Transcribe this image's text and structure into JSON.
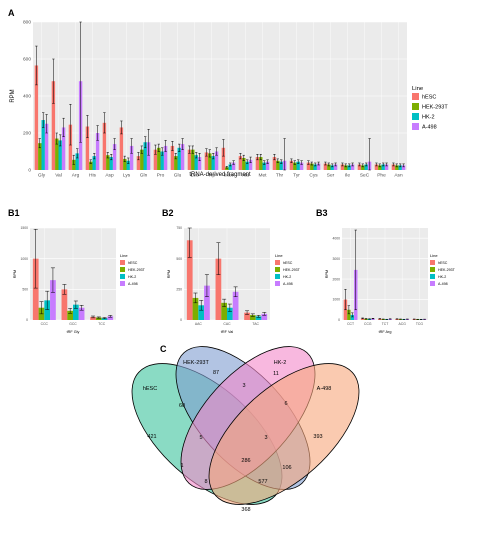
{
  "panel_labels": {
    "A": "A",
    "B1": "B1",
    "B2": "B2",
    "B3": "B3",
    "C": "C"
  },
  "legend": {
    "title": "Line",
    "entries": [
      "hESC",
      "HEK-293T",
      "HK-2",
      "A-498"
    ],
    "colors": [
      "#F8766D",
      "#7CAE00",
      "#00BFC4",
      "#C77CFF"
    ]
  },
  "chart_data": [
    {
      "id": "A",
      "type": "bar",
      "xlabel": "tRNA-derived fragment",
      "ylabel": "RPM",
      "ylim": [
        0,
        800
      ],
      "yticks": [
        0,
        200,
        400,
        600,
        800
      ],
      "grid": true,
      "legend_position": "right",
      "categories": [
        "Gly",
        "Val",
        "Arg",
        "His",
        "Asp",
        "Lys",
        "Gln",
        "Pro",
        "Glu",
        "Leu",
        "Trp",
        "iMet",
        "Ala",
        "Met",
        "Thr",
        "Tyr",
        "Cys",
        "Ser",
        "Ile",
        "SeC",
        "Phe",
        "Asn"
      ],
      "series": [
        {
          "name": "hESC",
          "values": [
            565,
            480,
            245,
            235,
            255,
            230,
            75,
            110,
            130,
            110,
            95,
            120,
            75,
            70,
            70,
            50,
            40,
            35,
            30,
            30,
            30,
            30
          ],
          "err": [
            105,
            120,
            110,
            60,
            55,
            35,
            20,
            25,
            25,
            20,
            20,
            45,
            15,
            15,
            15,
            10,
            10,
            8,
            8,
            8,
            8,
            8
          ]
        },
        {
          "name": "HEK-293T",
          "values": [
            145,
            170,
            55,
            45,
            80,
            60,
            110,
            120,
            75,
            110,
            90,
            15,
            65,
            70,
            50,
            40,
            35,
            30,
            25,
            25,
            25,
            25
          ],
          "err": [
            25,
            30,
            25,
            10,
            15,
            15,
            20,
            20,
            15,
            20,
            20,
            5,
            15,
            15,
            10,
            10,
            8,
            8,
            8,
            8,
            8,
            8
          ]
        },
        {
          "name": "HK-2",
          "values": [
            270,
            160,
            90,
            75,
            70,
            50,
            150,
            100,
            120,
            80,
            75,
            30,
            45,
            40,
            45,
            45,
            30,
            25,
            25,
            30,
            30,
            25
          ],
          "err": [
            40,
            30,
            25,
            15,
            15,
            15,
            30,
            20,
            20,
            15,
            15,
            8,
            10,
            10,
            10,
            10,
            8,
            8,
            8,
            8,
            8,
            8
          ]
        },
        {
          "name": "A-498",
          "values": [
            250,
            230,
            480,
            200,
            140,
            130,
            150,
            130,
            140,
            70,
            100,
            40,
            55,
            45,
            50,
            40,
            35,
            30,
            30,
            45,
            30,
            25
          ],
          "err": [
            50,
            50,
            330,
            40,
            30,
            40,
            70,
            30,
            30,
            20,
            20,
            10,
            15,
            10,
            120,
            10,
            8,
            8,
            8,
            125,
            8,
            8
          ]
        }
      ]
    },
    {
      "id": "B1",
      "type": "bar",
      "xlabel": "tRF Gly",
      "ylabel": "RPM",
      "ylim": [
        0,
        1500
      ],
      "yticks": [
        0,
        500,
        1000,
        1500
      ],
      "grid": true,
      "legend_position": "right",
      "categories": [
        "CCC",
        "GCC",
        "TCC"
      ],
      "series": [
        {
          "name": "hESC",
          "values": [
            1000,
            500,
            50
          ],
          "err": [
            480,
            80,
            15
          ]
        },
        {
          "name": "HEK-293T",
          "values": [
            200,
            150,
            40
          ],
          "err": [
            100,
            40,
            10
          ]
        },
        {
          "name": "HK-2",
          "values": [
            320,
            250,
            30
          ],
          "err": [
            150,
            60,
            10
          ]
        },
        {
          "name": "A-498",
          "values": [
            650,
            200,
            60
          ],
          "err": [
            200,
            40,
            15
          ]
        }
      ]
    },
    {
      "id": "B2",
      "type": "bar",
      "xlabel": "tRF Val",
      "ylabel": "RPM",
      "ylim": [
        0,
        750
      ],
      "yticks": [
        0,
        250,
        500,
        750
      ],
      "grid": true,
      "legend_position": "right",
      "categories": [
        "AAC",
        "CAC",
        "TAC"
      ],
      "series": [
        {
          "name": "hESC",
          "values": [
            650,
            500,
            60
          ],
          "err": [
            140,
            130,
            15
          ]
        },
        {
          "name": "HEK-293T",
          "values": [
            180,
            140,
            40
          ],
          "err": [
            40,
            30,
            10
          ]
        },
        {
          "name": "HK-2",
          "values": [
            120,
            100,
            30
          ],
          "err": [
            40,
            30,
            8
          ]
        },
        {
          "name": "A-498",
          "values": [
            280,
            230,
            50
          ],
          "err": [
            90,
            40,
            12
          ]
        }
      ]
    },
    {
      "id": "B3",
      "type": "bar",
      "xlabel": "tRF Arg",
      "ylabel": "RPM",
      "ylim": [
        0,
        4500
      ],
      "yticks": [
        0,
        1000,
        2000,
        3000,
        4000
      ],
      "grid": true,
      "legend_position": "right",
      "categories": [
        "CCT",
        "CCG",
        "TCT",
        "ACG",
        "TCG"
      ],
      "series": [
        {
          "name": "hESC",
          "values": [
            1000,
            80,
            60,
            50,
            40
          ],
          "err": [
            500,
            20,
            15,
            10,
            10
          ]
        },
        {
          "name": "HEK-293T",
          "values": [
            500,
            60,
            40,
            40,
            30
          ],
          "err": [
            200,
            15,
            10,
            10,
            8
          ]
        },
        {
          "name": "HK-2",
          "values": [
            250,
            50,
            30,
            30,
            25
          ],
          "err": [
            100,
            15,
            8,
            8,
            8
          ]
        },
        {
          "name": "A-498",
          "values": [
            2450,
            70,
            50,
            40,
            35
          ],
          "err": [
            1950,
            15,
            10,
            10,
            8
          ]
        }
      ]
    }
  ],
  "venn": {
    "sets": [
      "hESC",
      "HEK-293T",
      "HK-2",
      "A-498"
    ],
    "colors": [
      "#4CC7A5",
      "#7F9CD1",
      "#F489C9",
      "#F7A77B"
    ],
    "counts": {
      "hESC_only": "421",
      "HEK_only": "87",
      "HK2_only": "11",
      "A498_only": "393",
      "hESC_HEK": "60",
      "HEK_HK2": "3",
      "HK2_A498": "6",
      "hESC_A498": "368",
      "hESC_HEK_HK2": "5",
      "HEK_HK2_A498": "3",
      "hESC_HK2": "1",
      "HEK_A498": "106",
      "all": "286",
      "hESC_HEK_A498": "577",
      "hESC_HK2_A498": "8"
    }
  }
}
